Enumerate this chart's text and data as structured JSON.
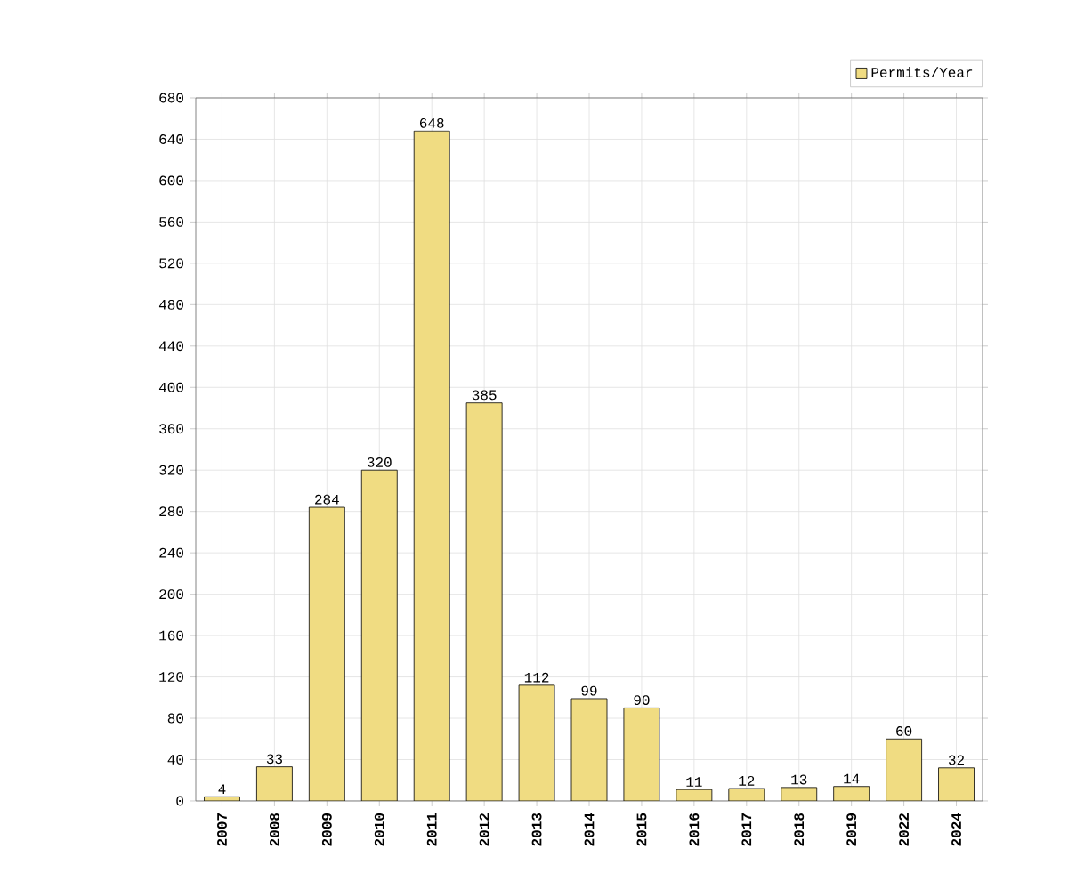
{
  "chart_data": {
    "type": "bar",
    "categories": [
      "2007",
      "2008",
      "2009",
      "2010",
      "2011",
      "2012",
      "2013",
      "2014",
      "2015",
      "2016",
      "2017",
      "2018",
      "2019",
      "2022",
      "2024"
    ],
    "series": [
      {
        "name": "Permits/Year",
        "color": "#f0dc82",
        "values": [
          4,
          33,
          284,
          320,
          648,
          385,
          112,
          99,
          90,
          11,
          12,
          13,
          14,
          60,
          32
        ]
      }
    ],
    "ylim": [
      0,
      680
    ],
    "yticks": [
      0,
      40,
      80,
      120,
      160,
      200,
      240,
      280,
      320,
      360,
      400,
      440,
      480,
      520,
      560,
      600,
      640,
      680
    ],
    "grid": true,
    "legend": "top right",
    "data_labels": true
  }
}
